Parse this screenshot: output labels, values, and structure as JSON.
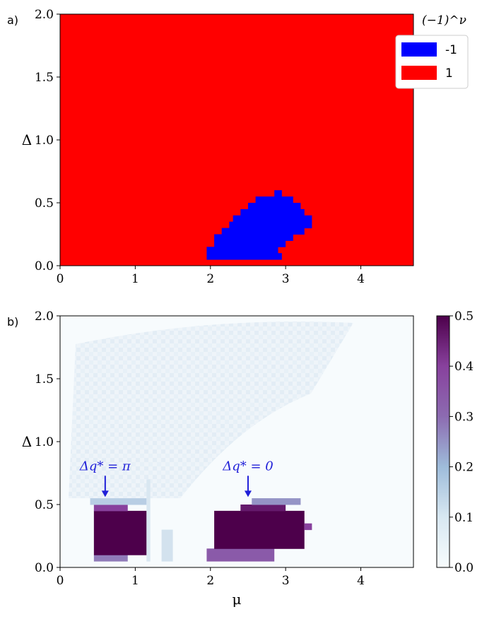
{
  "chart_data": [
    {
      "panel_label": "a)",
      "type": "heatmap",
      "xlim": [
        0,
        4.7
      ],
      "ylim": [
        0,
        2.0
      ],
      "x_ticks": [
        "0",
        "1",
        "2",
        "3",
        "4"
      ],
      "x_tick_values": [
        0,
        1,
        2,
        3,
        4
      ],
      "y_ticks": [
        "0.0",
        "0.5",
        "1.0",
        "1.5",
        "2.0"
      ],
      "y_tick_values": [
        0,
        0.5,
        1.0,
        1.5,
        2.0
      ],
      "ylabel": "Δ",
      "legend": {
        "title": "(−1)^ν",
        "placement": "top-right outside",
        "entries": [
          {
            "label": "-1",
            "color": "#0000ff"
          },
          {
            "label": "1",
            "color": "#ff0000"
          }
        ]
      },
      "background_value": 1,
      "region_value": -1,
      "region_rows": [
        {
          "y": [
            0.05,
            0.1
          ],
          "x": [
            1.95,
            2.95
          ]
        },
        {
          "y": [
            0.1,
            0.15
          ],
          "x": [
            1.95,
            2.9
          ]
        },
        {
          "y": [
            0.15,
            0.2
          ],
          "x": [
            2.05,
            3.0
          ]
        },
        {
          "y": [
            0.2,
            0.25
          ],
          "x": [
            2.05,
            3.1
          ]
        },
        {
          "y": [
            0.25,
            0.3
          ],
          "x": [
            2.15,
            3.25
          ]
        },
        {
          "y": [
            0.3,
            0.35
          ],
          "x": [
            2.25,
            3.35
          ]
        },
        {
          "y": [
            0.35,
            0.4
          ],
          "x": [
            2.3,
            3.35
          ]
        },
        {
          "y": [
            0.4,
            0.45
          ],
          "x": [
            2.4,
            3.25
          ]
        },
        {
          "y": [
            0.45,
            0.5
          ],
          "x": [
            2.5,
            3.2
          ]
        },
        {
          "y": [
            0.5,
            0.55
          ],
          "x": [
            2.6,
            3.1
          ]
        },
        {
          "y": [
            0.55,
            0.6
          ],
          "x": [
            2.85,
            2.95
          ]
        }
      ]
    },
    {
      "panel_label": "b)",
      "type": "heatmap",
      "xlim": [
        0,
        4.7
      ],
      "ylim": [
        0,
        2.0
      ],
      "x_ticks": [
        "0",
        "1",
        "2",
        "3",
        "4"
      ],
      "x_tick_values": [
        0,
        1,
        2,
        3,
        4
      ],
      "y_ticks": [
        "0.0",
        "0.5",
        "1.0",
        "1.5",
        "2.0"
      ],
      "y_tick_values": [
        0,
        0.5,
        1.0,
        1.5,
        2.0
      ],
      "xlabel": "μ",
      "ylabel": "Δ",
      "colorbar": {
        "colormap": "BuPu",
        "range": [
          0,
          0.5
        ],
        "ticks": [
          "0.0",
          "0.1",
          "0.2",
          "0.3",
          "0.4",
          "0.5"
        ],
        "tick_values": [
          0,
          0.1,
          0.2,
          0.3,
          0.4,
          0.5
        ]
      },
      "annotations": [
        {
          "text": "Δq* = π",
          "x": 0.6,
          "y": 0.56
        },
        {
          "text": "Δq* = 0",
          "x": 2.5,
          "y": 0.56
        }
      ],
      "cells": [
        {
          "x": [
            0.45,
            0.9
          ],
          "y": [
            0.05,
            0.1
          ],
          "v": 0.38
        },
        {
          "x": [
            0.45,
            1.15
          ],
          "y": [
            0.1,
            0.45
          ],
          "v": 0.5
        },
        {
          "x": [
            0.45,
            0.9
          ],
          "y": [
            0.45,
            0.5
          ],
          "v": 0.45
        },
        {
          "x": [
            0.4,
            1.15
          ],
          "y": [
            0.5,
            0.55
          ],
          "v": 0.22
        },
        {
          "x": [
            1.15,
            1.2
          ],
          "y": [
            0.05,
            0.7
          ],
          "v": 0.12
        },
        {
          "x": [
            1.35,
            1.5
          ],
          "y": [
            0.05,
            0.3
          ],
          "v": 0.14
        },
        {
          "x": [
            1.95,
            2.85
          ],
          "y": [
            0.05,
            0.15
          ],
          "v": 0.42
        },
        {
          "x": [
            2.05,
            3.25
          ],
          "y": [
            0.15,
            0.45
          ],
          "v": 0.5
        },
        {
          "x": [
            2.4,
            3.0
          ],
          "y": [
            0.45,
            0.5
          ],
          "v": 0.48
        },
        {
          "x": [
            2.55,
            3.2
          ],
          "y": [
            0.5,
            0.55
          ],
          "v": 0.35
        },
        {
          "x": [
            3.25,
            3.35
          ],
          "y": [
            0.3,
            0.35
          ],
          "v": 0.45
        }
      ],
      "faint_region": {
        "x": [
          0.0,
          3.9
        ],
        "y": [
          0.55,
          2.0
        ],
        "v": 0.02
      }
    }
  ]
}
